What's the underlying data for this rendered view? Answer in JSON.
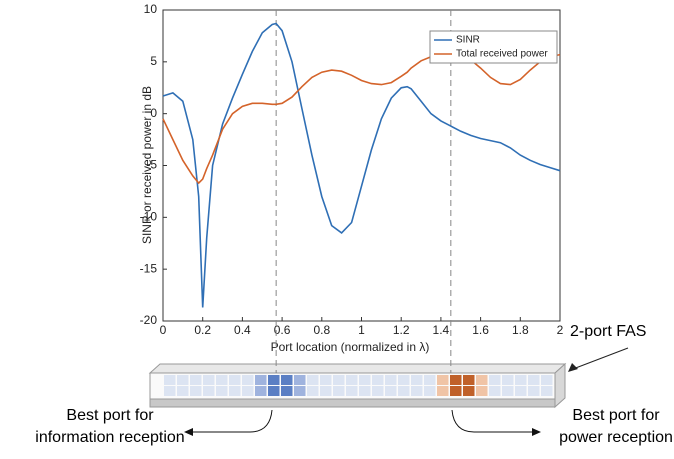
{
  "chart_data": {
    "type": "line",
    "xlabel": "Port location (normalized in λ)",
    "ylabel": "SINR or received power in dB",
    "x": [
      0,
      0.05,
      0.1,
      0.15,
      0.18,
      0.2,
      0.22,
      0.25,
      0.3,
      0.35,
      0.4,
      0.45,
      0.5,
      0.55,
      0.57,
      0.6,
      0.65,
      0.7,
      0.75,
      0.8,
      0.85,
      0.9,
      0.95,
      1.0,
      1.05,
      1.1,
      1.15,
      1.2,
      1.23,
      1.25,
      1.3,
      1.35,
      1.4,
      1.45,
      1.5,
      1.55,
      1.6,
      1.65,
      1.7,
      1.75,
      1.8,
      1.85,
      1.9,
      1.95,
      2.0
    ],
    "series": [
      {
        "name": "SINR",
        "color": "#2f6fb5",
        "values": [
          1.7,
          2.0,
          1.2,
          -2.5,
          -8,
          -18.7,
          -12,
          -5,
          -1,
          1.5,
          3.8,
          6,
          7.8,
          8.6,
          8.7,
          8,
          5,
          0.5,
          -4,
          -8,
          -10.8,
          -11.5,
          -10.5,
          -7,
          -3.5,
          -0.5,
          1.5,
          2.5,
          2.6,
          2.4,
          1.2,
          0,
          -0.7,
          -1.2,
          -1.7,
          -2.1,
          -2.4,
          -2.6,
          -2.8,
          -3.3,
          -4,
          -4.5,
          -4.9,
          -5.2,
          -5.5
        ]
      },
      {
        "name": "Total received power",
        "color": "#d4632a",
        "values": [
          -0.5,
          -2.5,
          -4.5,
          -6,
          -6.7,
          -6.3,
          -5.3,
          -4,
          -1.5,
          0,
          0.7,
          1,
          1,
          0.9,
          0.9,
          1,
          1.6,
          2.6,
          3.5,
          4.0,
          4.2,
          4.1,
          3.7,
          3.2,
          2.9,
          2.8,
          3.0,
          3.6,
          4.0,
          4.4,
          5.1,
          5.5,
          5.8,
          5.8,
          5.7,
          5.2,
          4.4,
          3.5,
          2.9,
          2.8,
          3.3,
          4.2,
          5.0,
          5.5,
          5.7
        ]
      }
    ],
    "xlim": [
      0,
      2
    ],
    "xticks": [
      0,
      0.2,
      0.4,
      0.6,
      0.8,
      1,
      1.2,
      1.4,
      1.6,
      1.8,
      2
    ],
    "ylim": [
      -20,
      10
    ],
    "yticks": [
      -20,
      -15,
      -10,
      -5,
      0,
      5,
      10
    ],
    "highlight_x": [
      0.57,
      1.45
    ],
    "legend": "upper right",
    "annotations": {
      "fas": "2-port FAS",
      "info": [
        "Best port for",
        "information reception"
      ],
      "power": [
        "Best port for",
        "power reception"
      ]
    }
  }
}
